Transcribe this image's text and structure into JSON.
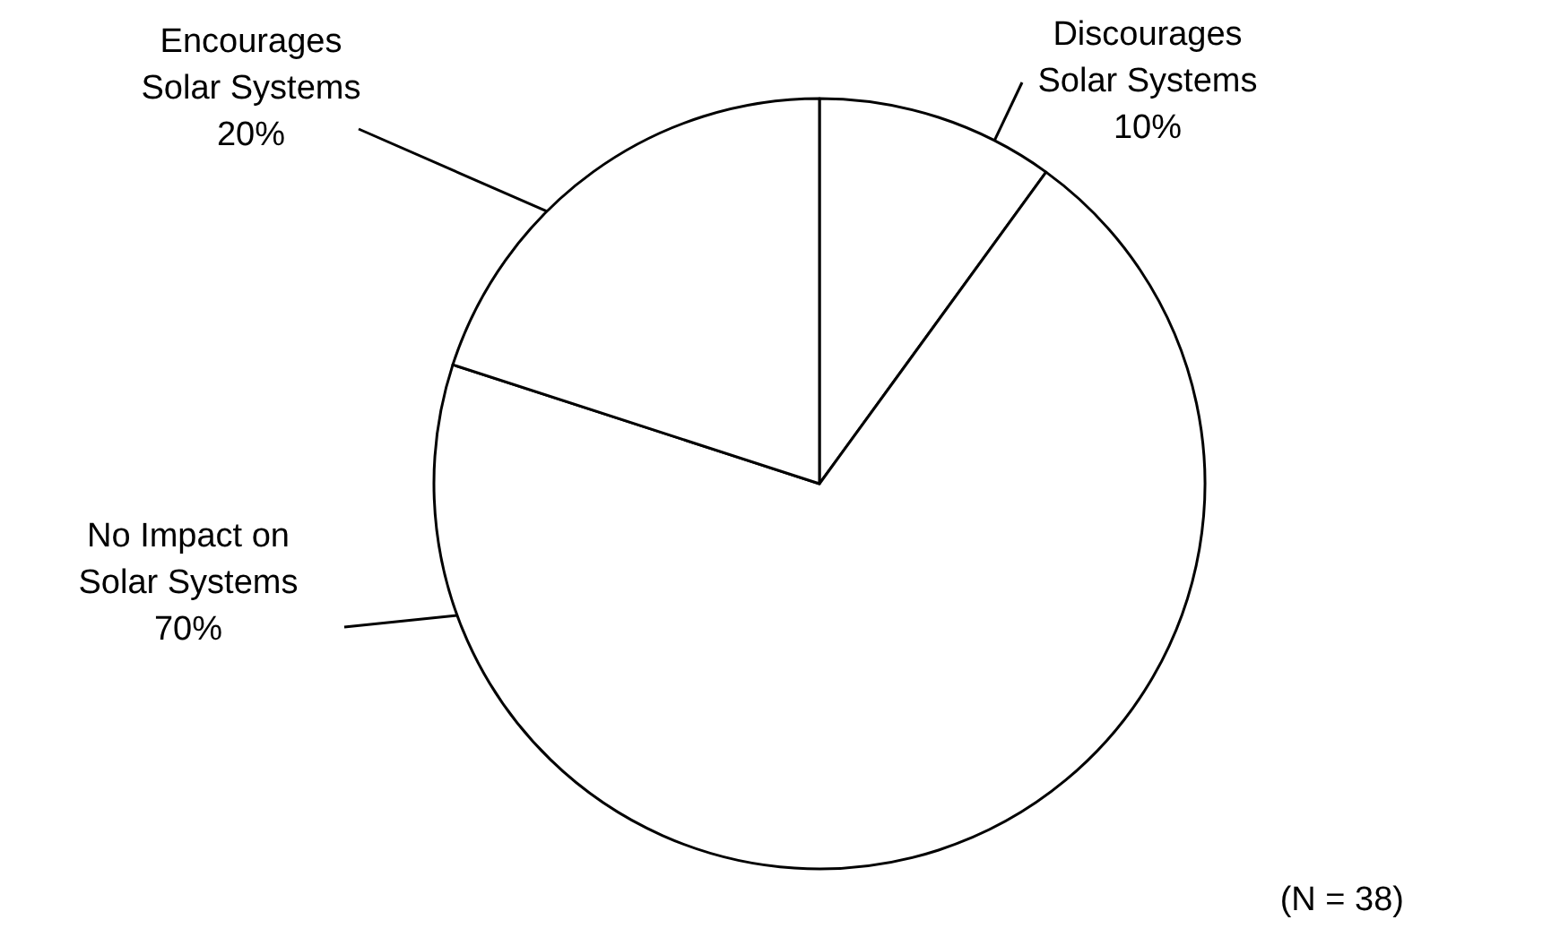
{
  "chart_data": {
    "type": "pie",
    "categories": [
      "Discourages Solar Systems",
      "No Impact on Solar Systems",
      "Encourages Solar Systems"
    ],
    "values": [
      10,
      70,
      20
    ],
    "value_labels": [
      "10%",
      "70%",
      "20%"
    ],
    "colors": [
      "#ffffff",
      "#ffffff",
      "#ffffff"
    ],
    "legend": false,
    "annotations": [
      "(N = 38)"
    ]
  }
}
